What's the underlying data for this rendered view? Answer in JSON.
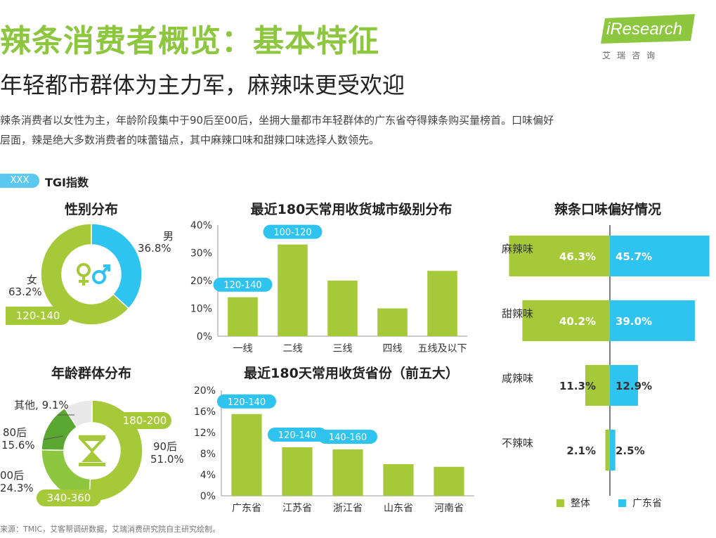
{
  "header": {
    "title": "辣条消费者概览：基本特征",
    "subtitle": "年轻都市群体为主力军，麻辣味更受欢迎",
    "summary_line1": "辣条消费者以女性为主，年龄阶段集中于90后至00后，坐拥大量都市年轻群体的广东省夺得辣条购买量榜首。口味偏好",
    "summary_line2": "层面，辣是绝大多数消费者的味蕾锚点，其中麻辣口味和甜辣口味选择人数领先。"
  },
  "logo": {
    "text": "iResearch",
    "sub": "艾瑞咨询"
  },
  "legend_tgi": {
    "badge": "XXX",
    "label": "TGI指数"
  },
  "colors": {
    "green": "#a6c93a",
    "blue": "#2fc3ef",
    "dark_green": "#5aa832",
    "light_green": "#8dc63f",
    "gray": "#e8e8e8",
    "badge_blue": "#5bc8ef"
  },
  "source": "来源：TMIC，艾客帮调研数据，艾瑞消费研究院自主研究绘制。",
  "chart_data": [
    {
      "id": "gender",
      "type": "pie",
      "title": "性别分布",
      "slices": [
        {
          "label": "男",
          "value": 36.8,
          "value_text": "36.8%",
          "color": "#2fc3ef"
        },
        {
          "label": "女",
          "value": 63.2,
          "value_text": "63.2%",
          "color": "#a6c93a"
        }
      ],
      "tgi_badges": [
        "120-140"
      ]
    },
    {
      "id": "age",
      "type": "pie",
      "title": "年龄群体分布",
      "slices": [
        {
          "label": "90后",
          "value": 51.0,
          "value_text": "51.0%",
          "color": "#a6c93a"
        },
        {
          "label": "00后",
          "value": 24.3,
          "value_text": "24.3%",
          "color": "#8dc63f"
        },
        {
          "label": "80后",
          "value": 15.6,
          "value_text": "15.6%",
          "color": "#5aa832"
        },
        {
          "label": "其他",
          "value": 9.1,
          "value_text": "9.1%",
          "color": "#e8e8e8"
        }
      ],
      "tgi_badges": [
        "180-200",
        "340-360"
      ]
    },
    {
      "id": "city",
      "type": "bar",
      "title": "最近180天常用收货城市级别分布",
      "categories": [
        "一线",
        "二线",
        "三线",
        "四线",
        "五线及以下"
      ],
      "values": [
        14,
        33,
        20,
        10,
        23.5
      ],
      "tgi_badges": [
        {
          "category": "一线",
          "text": "120-140"
        },
        {
          "category": "二线",
          "text": "100-120"
        }
      ],
      "yticks": [
        "40%",
        "30%",
        "20%",
        "10%",
        "0%"
      ],
      "ylim": [
        0,
        40
      ]
    },
    {
      "id": "province",
      "type": "bar",
      "title": "最近180天常用收货省份（前五大）",
      "categories": [
        "广东省",
        "江苏省",
        "浙江省",
        "山东省",
        "河南省"
      ],
      "values": [
        15.5,
        9.2,
        8.8,
        6.0,
        5.5
      ],
      "tgi_badges": [
        {
          "category": "广东省",
          "text": "120-140"
        },
        {
          "category": "江苏省",
          "text": "120-140"
        },
        {
          "category": "浙江省",
          "text": "140-160"
        }
      ],
      "yticks": [
        "20%",
        "16%",
        "12%",
        "8%",
        "4%",
        "0%"
      ],
      "ylim": [
        0,
        20
      ]
    },
    {
      "id": "flavor",
      "type": "bar",
      "title": "辣条口味偏好情况",
      "categories": [
        "麻辣味",
        "甜辣味",
        "咸辣味",
        "不辣味"
      ],
      "series": [
        {
          "name": "整体",
          "values": [
            46.3,
            40.2,
            11.3,
            2.1
          ],
          "labels": [
            "46.3%",
            "40.2%",
            "11.3%",
            "2.1%"
          ],
          "color": "#a6c93a"
        },
        {
          "name": "广东省",
          "values": [
            45.7,
            39.0,
            12.9,
            2.5
          ],
          "labels": [
            "45.7%",
            "39.0%",
            "12.9%",
            "2.5%"
          ],
          "color": "#2fc3ef"
        }
      ]
    }
  ]
}
